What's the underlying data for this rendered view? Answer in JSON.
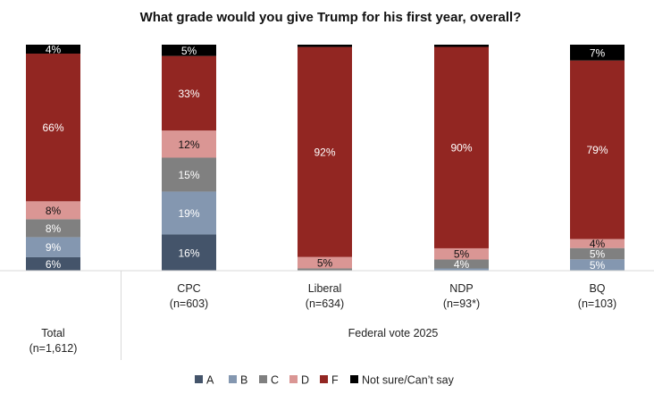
{
  "chart_data": {
    "type": "bar",
    "stacked": true,
    "title": "What grade would you give Trump for his first year, overall?",
    "xlabel": "",
    "ylabel": "",
    "ylim": [
      0,
      100
    ],
    "grid": false,
    "legend_position": "bottom",
    "categories": [
      {
        "name": "Total",
        "n": "(n=1,612)"
      },
      {
        "name": "CPC",
        "n": "(n=603)"
      },
      {
        "name": "Liberal",
        "n": "(n=634)"
      },
      {
        "name": "NDP",
        "n": "(n=93*)"
      },
      {
        "name": "BQ",
        "n": "(n=103)"
      }
    ],
    "group_label": "Federal vote 2025",
    "series": [
      {
        "name": "A",
        "color": "#44546a",
        "label_color": "#ffffff",
        "values": [
          6,
          16,
          0,
          0,
          0
        ],
        "labels": [
          "6%",
          "16%",
          "",
          "",
          ""
        ]
      },
      {
        "name": "B",
        "color": "#8497b0",
        "label_color": "#ffffff",
        "values": [
          9,
          19,
          0,
          1,
          5
        ],
        "labels": [
          "9%",
          "19%",
          "",
          "",
          "5%"
        ]
      },
      {
        "name": "C",
        "color": "#808080",
        "label_color": "#ffffff",
        "values": [
          8,
          15,
          1,
          4,
          5
        ],
        "labels": [
          "8%",
          "15%",
          "",
          "4%",
          "5%"
        ]
      },
      {
        "name": "D",
        "color": "#da9694",
        "label_color": "#111111",
        "values": [
          8,
          12,
          5,
          5,
          4
        ],
        "labels": [
          "8%",
          "12%",
          "5%",
          "5%",
          "4%"
        ]
      },
      {
        "name": "F",
        "color": "#922622",
        "label_color": "#ffffff",
        "values": [
          66,
          33,
          92,
          90,
          79
        ],
        "labels": [
          "66%",
          "33%",
          "92%",
          "90%",
          "79%"
        ]
      },
      {
        "name": "Not sure/Can’t say",
        "color": "#000000",
        "label_color": "#ffffff",
        "values": [
          4,
          5,
          1,
          1,
          7
        ],
        "labels": [
          "4%",
          "5%",
          "",
          "",
          "7%"
        ]
      }
    ]
  }
}
